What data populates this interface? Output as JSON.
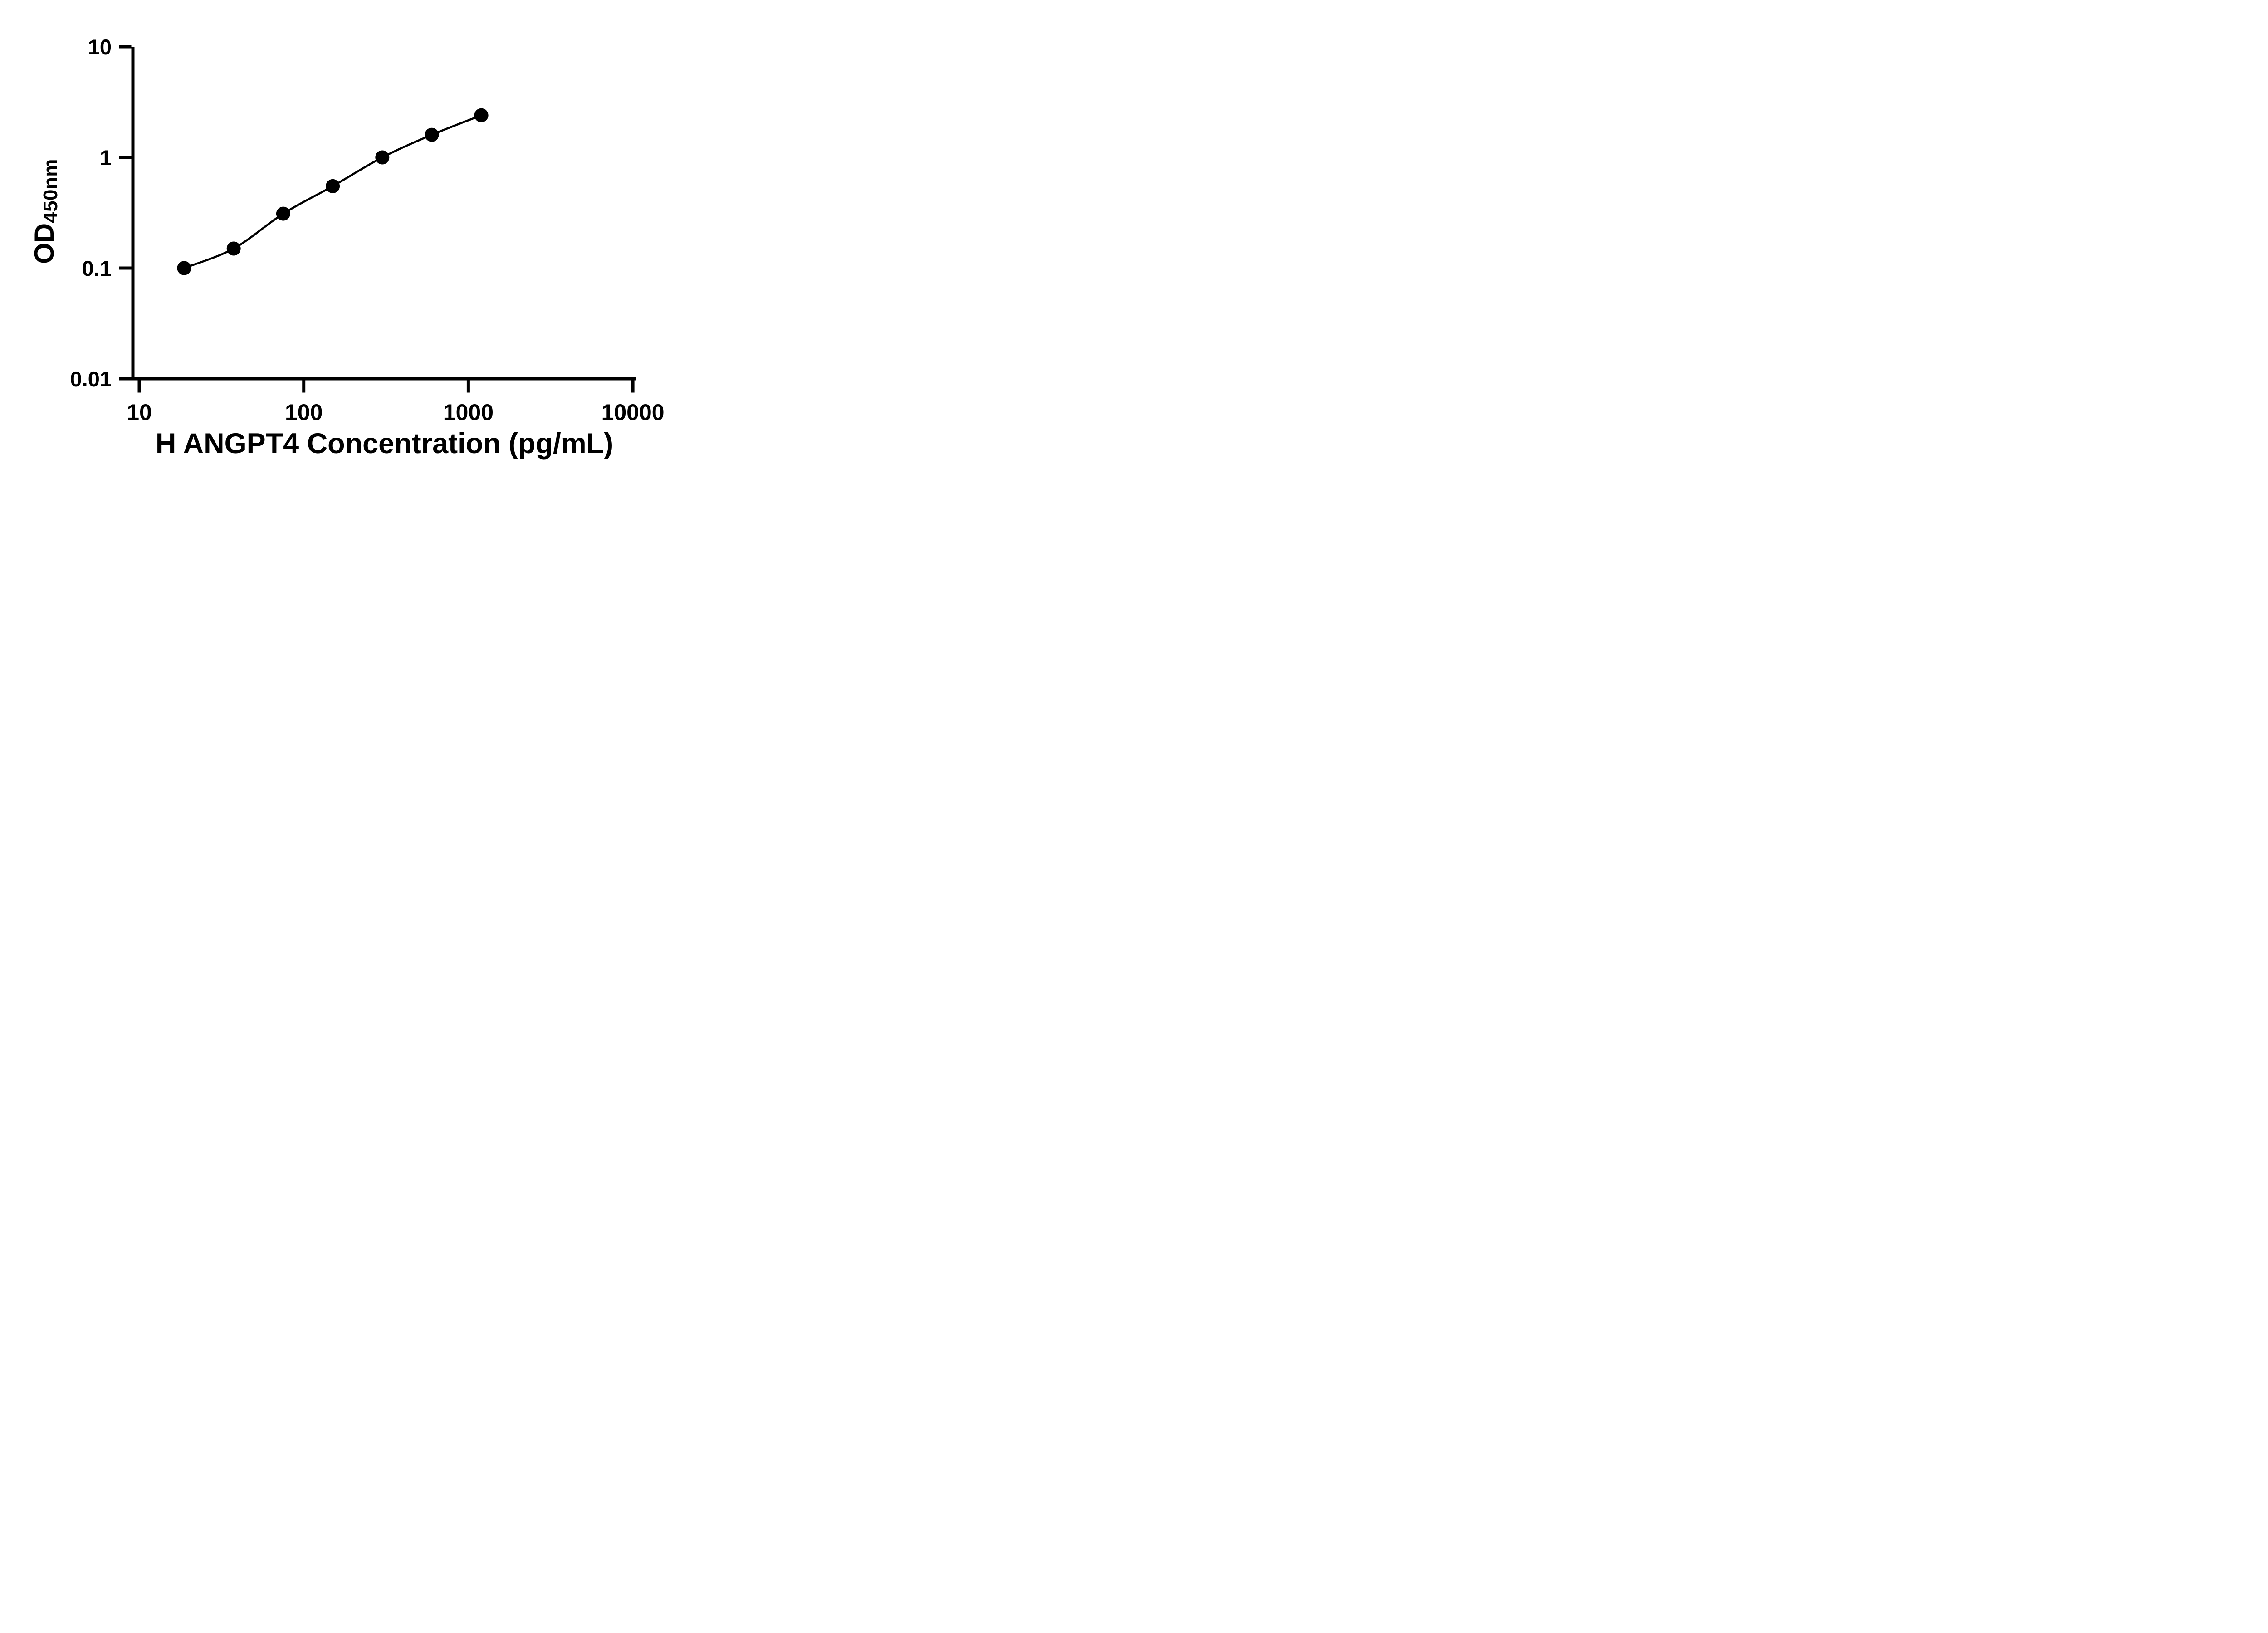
{
  "chart_data": {
    "type": "scatter",
    "curve": "smooth-line-through-points",
    "title": "",
    "xlabel": "H ANGPT4 Concentration (pg/mL)",
    "ylabel_main": "OD",
    "ylabel_sub": "450nm",
    "x": [
      18.75,
      37.5,
      75,
      150,
      300,
      600,
      1200
    ],
    "y": [
      0.1,
      0.15,
      0.31,
      0.55,
      1.0,
      1.6,
      2.4
    ],
    "xscale": "log",
    "yscale": "log",
    "xlim": [
      10,
      10000
    ],
    "ylim": [
      0.01,
      10
    ],
    "x_ticks": [
      10,
      100,
      1000,
      10000
    ],
    "x_tick_labels": [
      "10",
      "100",
      "1000",
      "10000"
    ],
    "y_ticks": [
      0.01,
      0.1,
      1,
      10
    ],
    "y_tick_labels": [
      "0.01",
      "0.1",
      "1",
      "10"
    ],
    "grid": false,
    "legend": false,
    "marker_shape": "filled-circle",
    "marker_color": "#000000",
    "line_color": "#000000",
    "axis_color": "#000000",
    "background": "#ffffff"
  }
}
